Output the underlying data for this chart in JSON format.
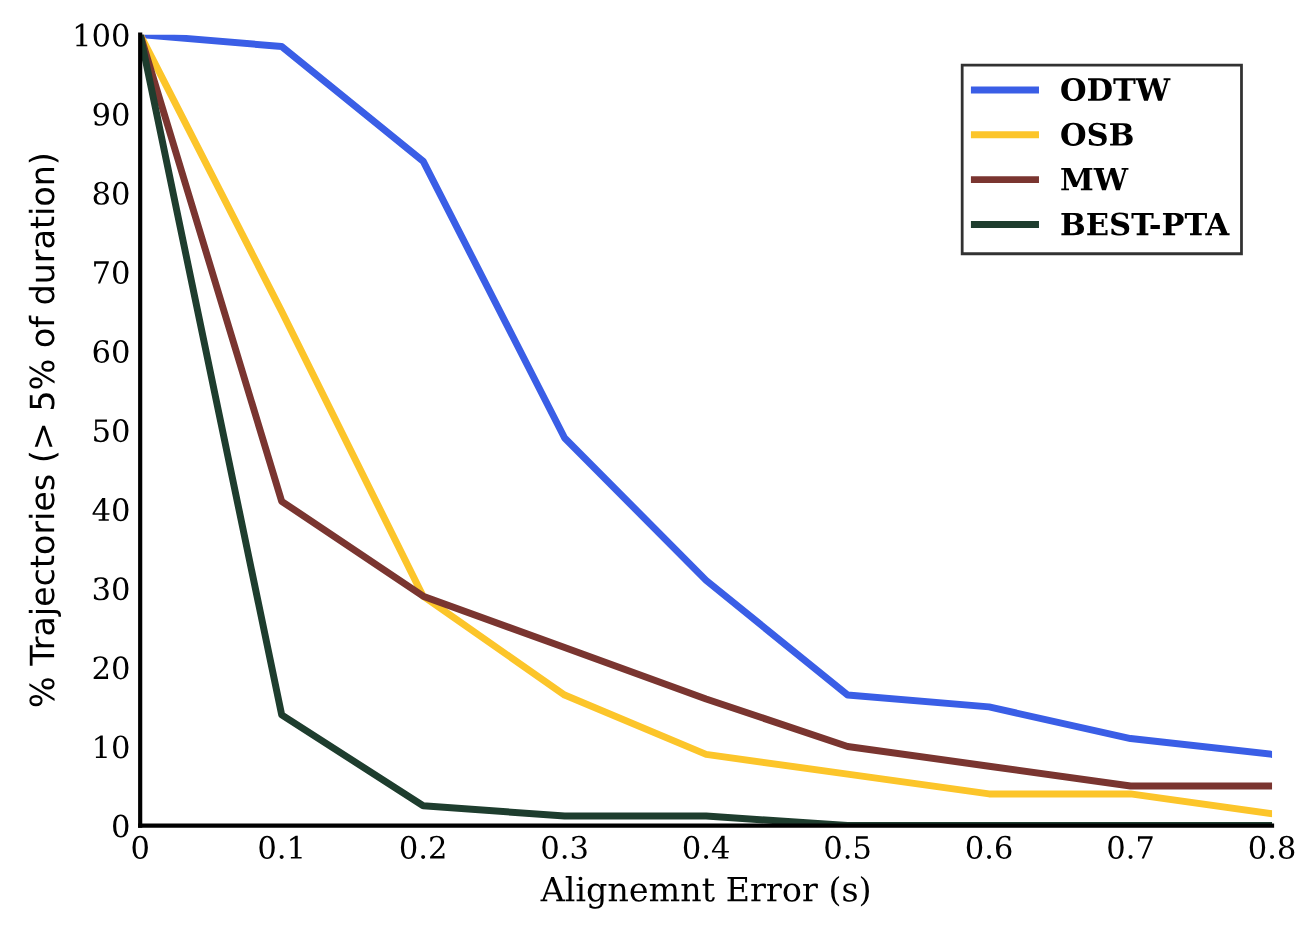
{
  "chart_data": {
    "type": "line",
    "xlabel": "Alignemnt Error (s)",
    "ylabel": "% Trajectories (> 5% of duration)",
    "x": [
      0,
      0.1,
      0.2,
      0.3,
      0.4,
      0.5,
      0.6,
      0.7,
      0.8
    ],
    "series": [
      {
        "name": "ODTW",
        "color": "#3a5ee6",
        "values": [
          100,
          98.5,
          84,
          49,
          31,
          16.5,
          15,
          11,
          9
        ]
      },
      {
        "name": "OSB",
        "color": "#fcc52a",
        "values": [
          100,
          65,
          29,
          16.5,
          9,
          6.5,
          4,
          4,
          1.5
        ]
      },
      {
        "name": "MW",
        "color": "#7a3530",
        "values": [
          100,
          41,
          29,
          22.5,
          16,
          10,
          7.5,
          5,
          5
        ]
      },
      {
        "name": "BEST-PTA",
        "color": "#1e3d2e",
        "values": [
          100,
          14,
          2.5,
          1.2,
          1.2,
          0,
          0,
          0,
          0
        ]
      }
    ],
    "xlim": [
      0,
      0.8
    ],
    "ylim": [
      0,
      100
    ],
    "xticks": [
      0,
      0.1,
      0.2,
      0.3,
      0.4,
      0.5,
      0.6,
      0.7,
      0.8
    ],
    "yticks": [
      0,
      10,
      20,
      30,
      40,
      50,
      60,
      70,
      80,
      90,
      100
    ],
    "grid": false,
    "legend": "top right",
    "marker": "none",
    "line_style": "solid"
  }
}
